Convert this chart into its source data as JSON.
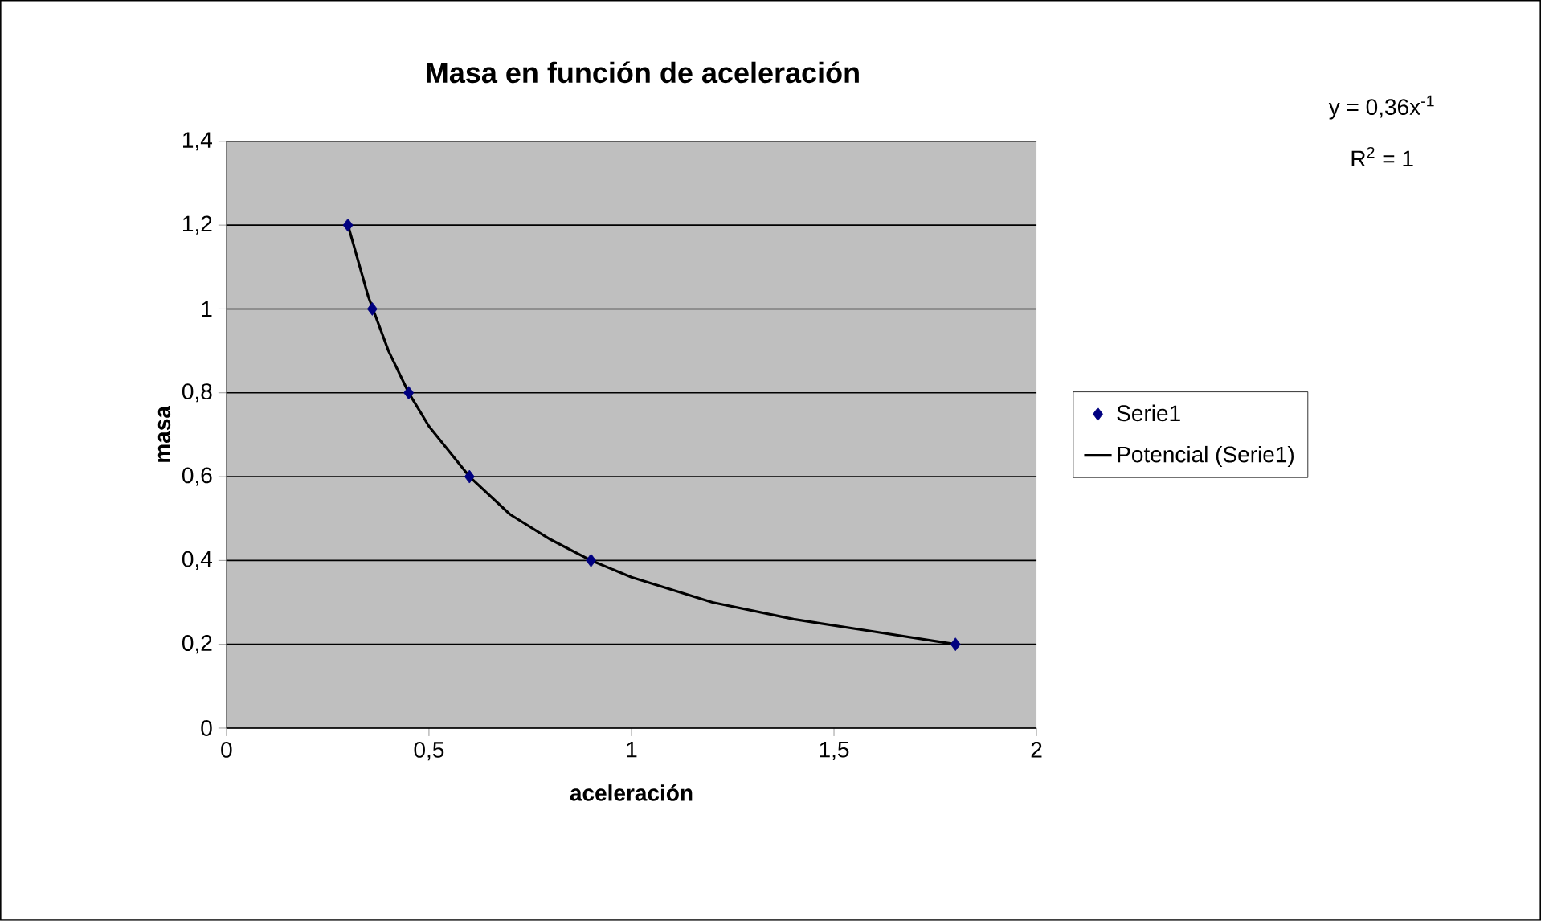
{
  "chart_data": {
    "type": "scatter",
    "title": "Masa en función de aceleración",
    "xlabel": "aceleración",
    "ylabel": "masa",
    "xlim": [
      0,
      2
    ],
    "ylim": [
      0,
      1.4
    ],
    "xticks": [
      0,
      {
        "value": 0.5,
        "label": "0,5"
      },
      1,
      {
        "value": 1.5,
        "label": "1,5"
      },
      2
    ],
    "yticks": [
      0,
      {
        "value": 0.2,
        "label": "0,2"
      },
      {
        "value": 0.4,
        "label": "0,4"
      },
      {
        "value": 0.6,
        "label": "0,6"
      },
      {
        "value": 0.8,
        "label": "0,8"
      },
      1,
      {
        "value": 1.2,
        "label": "1,2"
      },
      {
        "value": 1.4,
        "label": "1,4"
      }
    ],
    "grid": "y",
    "legend": "right",
    "annotations": [
      "y = 0,36x$^{-1}$",
      "R$^{2}$ = 1"
    ],
    "series": [
      {
        "name": "Serie1",
        "marker": "diamond",
        "color": "#000080",
        "x": [
          0.3,
          0.36,
          0.45,
          0.6,
          0.9,
          1.8
        ],
        "values": [
          1.2,
          1.0,
          0.8,
          0.6,
          0.4,
          0.2
        ]
      },
      {
        "name": "Potencial (Serie1)",
        "type": "line",
        "marker": "none",
        "color": "#000000",
        "x": [
          0.3,
          0.35,
          0.4,
          0.45,
          0.5,
          0.6,
          0.7,
          0.8,
          0.9,
          1.0,
          1.2,
          1.4,
          1.6,
          1.8
        ],
        "values": [
          1.2,
          1.03,
          0.9,
          0.8,
          0.72,
          0.6,
          0.51,
          0.45,
          0.4,
          0.36,
          0.3,
          0.26,
          0.23,
          0.2
        ]
      }
    ]
  }
}
